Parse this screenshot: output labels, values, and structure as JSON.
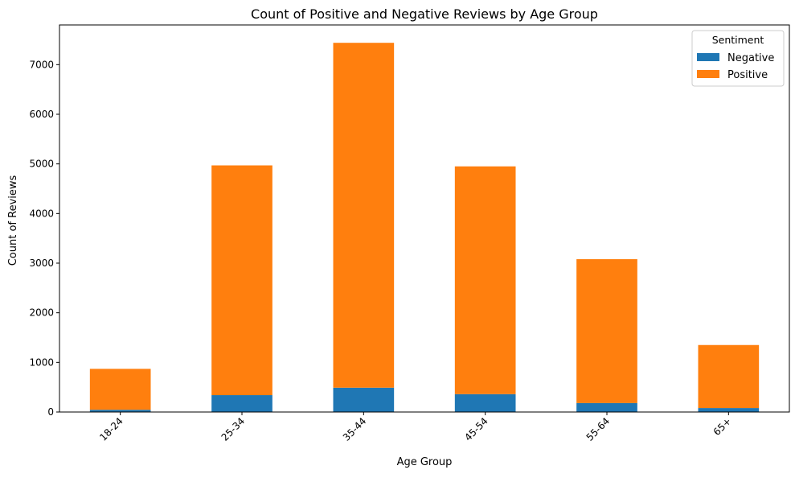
{
  "chart_data": {
    "type": "bar",
    "stacked": true,
    "title": "Count of Positive and Negative Reviews by Age Group",
    "xlabel": "Age Group",
    "ylabel": "Count of Reviews",
    "categories": [
      "18-24",
      "25-34",
      "35-44",
      "45-54",
      "55-64",
      "65+"
    ],
    "series": [
      {
        "name": "Negative",
        "color": "#1f77b4",
        "values": [
          45,
          340,
          490,
          360,
          180,
          80
        ]
      },
      {
        "name": "Positive",
        "color": "#ff7f0e",
        "values": [
          825,
          4630,
          6950,
          4590,
          2900,
          1270
        ]
      }
    ],
    "ylim": [
      0,
      7800
    ],
    "yticks": [
      0,
      1000,
      2000,
      3000,
      4000,
      5000,
      6000,
      7000
    ],
    "ytick_labels": [
      "0",
      "1000",
      "2000",
      "3000",
      "4000",
      "5000",
      "6000",
      "7000"
    ],
    "grid": false,
    "legend": {
      "title": "Sentiment",
      "placement": "top-right"
    }
  }
}
